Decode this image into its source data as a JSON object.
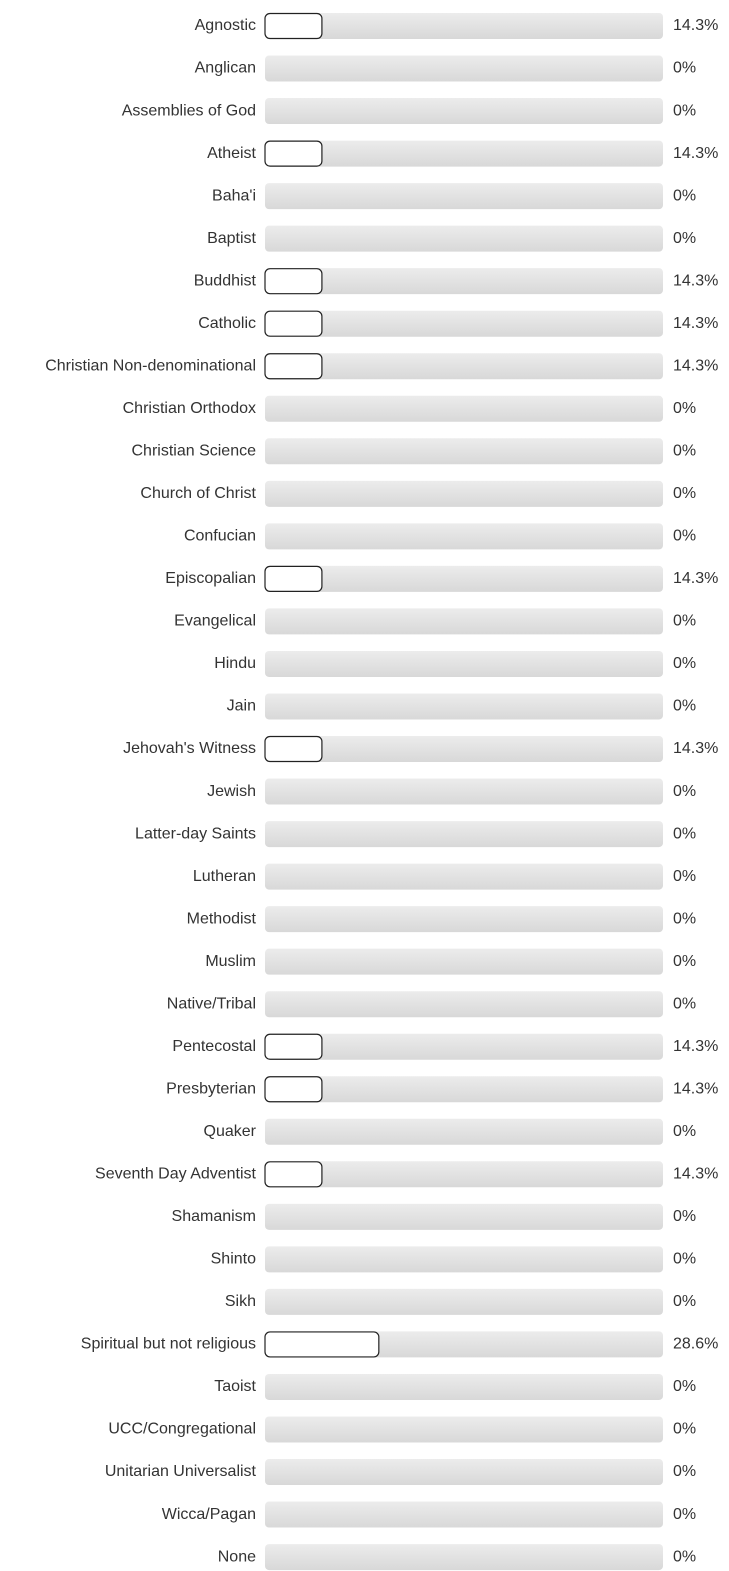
{
  "chart_data": {
    "type": "hbar",
    "categories": [
      "Agnostic",
      "Anglican",
      "Assemblies of God",
      "Atheist",
      "Baha'i",
      "Baptist",
      "Buddhist",
      "Catholic",
      "Christian Non-denominational",
      "Christian Orthodox",
      "Christian Science",
      "Church of Christ",
      "Confucian",
      "Episcopalian",
      "Evangelical",
      "Hindu",
      "Jain",
      "Jehovah's Witness",
      "Jewish",
      "Latter-day Saints",
      "Lutheran",
      "Methodist",
      "Muslim",
      "Native/Tribal",
      "Pentecostal",
      "Presbyterian",
      "Quaker",
      "Seventh Day Adventist",
      "Shamanism",
      "Shinto",
      "Sikh",
      "Spiritual but not religious",
      "Taoist",
      "UCC/Congregational",
      "Unitarian Universalist",
      "Wicca/Pagan",
      "None"
    ],
    "values": [
      14.3,
      0,
      0,
      14.3,
      0,
      0,
      14.3,
      14.3,
      14.3,
      0,
      0,
      0,
      0,
      14.3,
      0,
      0,
      0,
      14.3,
      0,
      0,
      0,
      0,
      0,
      0,
      14.3,
      14.3,
      0,
      14.3,
      0,
      0,
      0,
      28.6,
      0,
      0,
      0,
      0,
      0
    ],
    "value_labels": [
      "14.3%",
      "0%",
      "0%",
      "14.3%",
      "0%",
      "0%",
      "14.3%",
      "14.3%",
      "14.3%",
      "0%",
      "0%",
      "0%",
      "0%",
      "14.3%",
      "0%",
      "0%",
      "0%",
      "14.3%",
      "0%",
      "0%",
      "0%",
      "0%",
      "0%",
      "0%",
      "14.3%",
      "14.3%",
      "0%",
      "14.3%",
      "0%",
      "0%",
      "0%",
      "28.6%",
      "0%",
      "0%",
      "0%",
      "0%",
      "0%"
    ],
    "xlim": [
      0,
      100
    ],
    "color": "#ffffff",
    "track_color": "#e2e2e2"
  }
}
